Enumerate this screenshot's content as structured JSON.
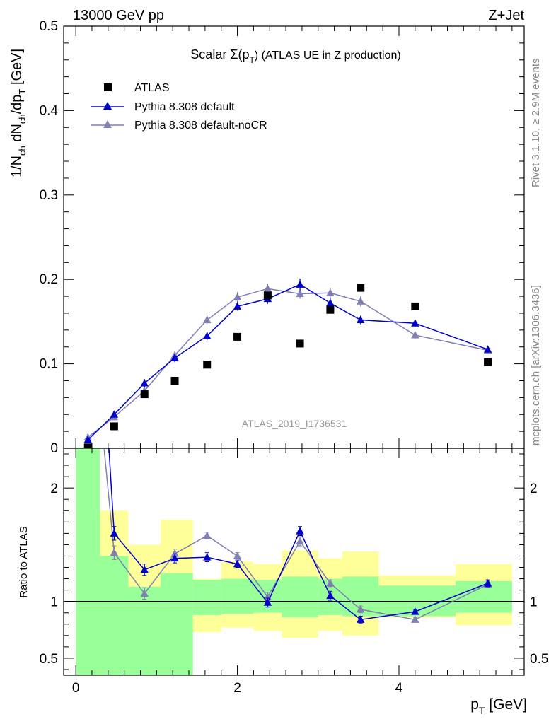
{
  "header": {
    "left": "13000 GeV pp",
    "right": "Z+Jet"
  },
  "side": {
    "rivet": "Rivet 3.1.10, ≥ 2.9M events",
    "mcplots": "mcplots.cern.ch [arXiv:1306.3436]"
  },
  "watermark": "ATLAS_2019_I1736531",
  "chart_data": [
    {
      "type": "scatter",
      "title": "Scalar Σ(p_T) (ATLAS UE in Z production)",
      "title_main": "Scalar Σ(p",
      "title_sub": "T",
      "title_end": ") (ATLAS UE in Z production)",
      "ylabel": "1/N_ch dN_ch/dp_T [GeV]",
      "xlim": [
        -0.15,
        5.55
      ],
      "ylim": [
        0,
        0.5
      ],
      "yticks": [
        {
          "v": 0.1,
          "label": "0.1"
        },
        {
          "v": 0.2,
          "label": "0.2"
        },
        {
          "v": 0.3,
          "label": "0.3"
        },
        {
          "v": 0.4,
          "label": "0.4"
        },
        {
          "v": 0.5,
          "label": "0.5"
        }
      ],
      "y_zero_label": "0",
      "legend": {
        "position": "top-left"
      },
      "series": [
        {
          "name": "ATLAS",
          "marker": "square",
          "color": "#000000",
          "x": [
            0.15,
            0.475,
            0.85,
            1.225,
            1.625,
            2.0,
            2.375,
            2.775,
            3.15,
            3.525,
            4.2,
            5.1
          ],
          "y": [
            0.001,
            0.026,
            0.064,
            0.08,
            0.099,
            0.132,
            0.181,
            0.124,
            0.164,
            0.19,
            0.168,
            0.102
          ]
        },
        {
          "name": "Pythia 8.308 default",
          "marker": "triangle",
          "color": "#0000cc",
          "x": [
            0.15,
            0.475,
            0.85,
            1.225,
            1.625,
            2.0,
            2.375,
            2.775,
            3.15,
            3.525,
            4.2,
            5.1
          ],
          "y": [
            0.01,
            0.04,
            0.077,
            0.107,
            0.133,
            0.168,
            0.177,
            0.194,
            0.172,
            0.152,
            0.148,
            0.117
          ],
          "err": [
            0.003,
            0.003,
            0.005,
            0.005,
            0.005,
            0.005,
            0.006,
            0.007,
            0.006,
            0.005,
            0.004,
            0.003
          ]
        },
        {
          "name": "Pythia 8.308 default-noCR",
          "marker": "triangle",
          "color": "#7f7fb2",
          "x": [
            0.15,
            0.475,
            0.85,
            1.225,
            1.625,
            2.0,
            2.375,
            2.775,
            3.15,
            3.525,
            4.2,
            5.1
          ],
          "y": [
            0.013,
            0.037,
            0.068,
            0.11,
            0.152,
            0.179,
            0.189,
            0.183,
            0.184,
            0.174,
            0.134,
            0.116
          ],
          "err": [
            0.003,
            0.003,
            0.004,
            0.005,
            0.005,
            0.006,
            0.006,
            0.006,
            0.006,
            0.006,
            0.004,
            0.003
          ]
        }
      ]
    },
    {
      "type": "line",
      "ylabel": "Ratio to ATLAS",
      "xlabel": "p_T [GeV]",
      "xlabel_main": "p",
      "xlabel_sub": "T",
      "xlabel_end": " [GeV]",
      "xlim": [
        -0.15,
        5.55
      ],
      "ylim": [
        0.35,
        2.35
      ],
      "xticks": [
        {
          "v": 0,
          "label": "0"
        },
        {
          "v": 2,
          "label": "2"
        },
        {
          "v": 4,
          "label": "4"
        }
      ],
      "yticks": [
        {
          "v": 0.5,
          "label": "0.5"
        },
        {
          "v": 1,
          "label": "1"
        },
        {
          "v": 2,
          "label": "2"
        }
      ],
      "bands": {
        "edges": [
          0,
          0.3,
          0.65,
          1.05,
          1.45,
          1.8,
          2.2,
          2.55,
          3.0,
          3.3,
          3.75,
          4.7,
          5.4
        ],
        "yellow_lo": [
          0.35,
          0.67,
          0.35,
          0.72,
          0.73,
          0.77,
          0.74,
          0.68,
          0.74,
          0.7,
          0.86,
          0.79
        ],
        "yellow_hi": [
          2.35,
          1.8,
          1.5,
          1.72,
          1.2,
          1.35,
          1.33,
          1.45,
          1.38,
          1.44,
          1.23,
          1.33
        ],
        "green_lo": [
          0.35,
          0.35,
          0.35,
          0.35,
          0.88,
          0.89,
          0.9,
          0.86,
          0.88,
          0.87,
          0.87,
          0.9
        ],
        "green_hi": [
          2.35,
          1.4,
          1.13,
          1.25,
          1.19,
          1.2,
          1.19,
          1.22,
          1.2,
          1.22,
          1.14,
          1.18
        ]
      },
      "series": [
        {
          "name": "Pythia 8.308 default",
          "color": "#0000cc",
          "x": [
            0.475,
            0.85,
            1.225,
            1.625,
            2.0,
            2.375,
            2.775,
            3.15,
            3.525,
            4.2,
            5.1
          ],
          "y": [
            1.6,
            1.28,
            1.38,
            1.39,
            1.33,
            0.99,
            1.62,
            1.05,
            0.84,
            0.91,
            1.16
          ],
          "err": [
            0.06,
            0.05,
            0.04,
            0.04,
            0.03,
            0.04,
            0.04,
            0.04,
            0.03,
            0.02,
            0.03
          ]
        },
        {
          "name": "Pythia 8.308 default-noCR",
          "color": "#7f7fb2",
          "x": [
            0.475,
            0.85,
            1.225,
            1.625,
            2.0,
            2.375,
            2.775,
            3.15,
            3.525,
            4.2,
            5.1
          ],
          "y": [
            1.43,
            1.07,
            1.42,
            1.58,
            1.4,
            1.04,
            1.53,
            1.16,
            0.93,
            0.84,
            1.15
          ],
          "err": [
            0.06,
            0.05,
            0.04,
            0.03,
            0.03,
            0.04,
            0.04,
            0.03,
            0.03,
            0.02,
            0.03
          ]
        }
      ],
      "offscale": {
        "x": [
          0.35,
          0.41
        ],
        "y_start": 2.35
      }
    }
  ]
}
